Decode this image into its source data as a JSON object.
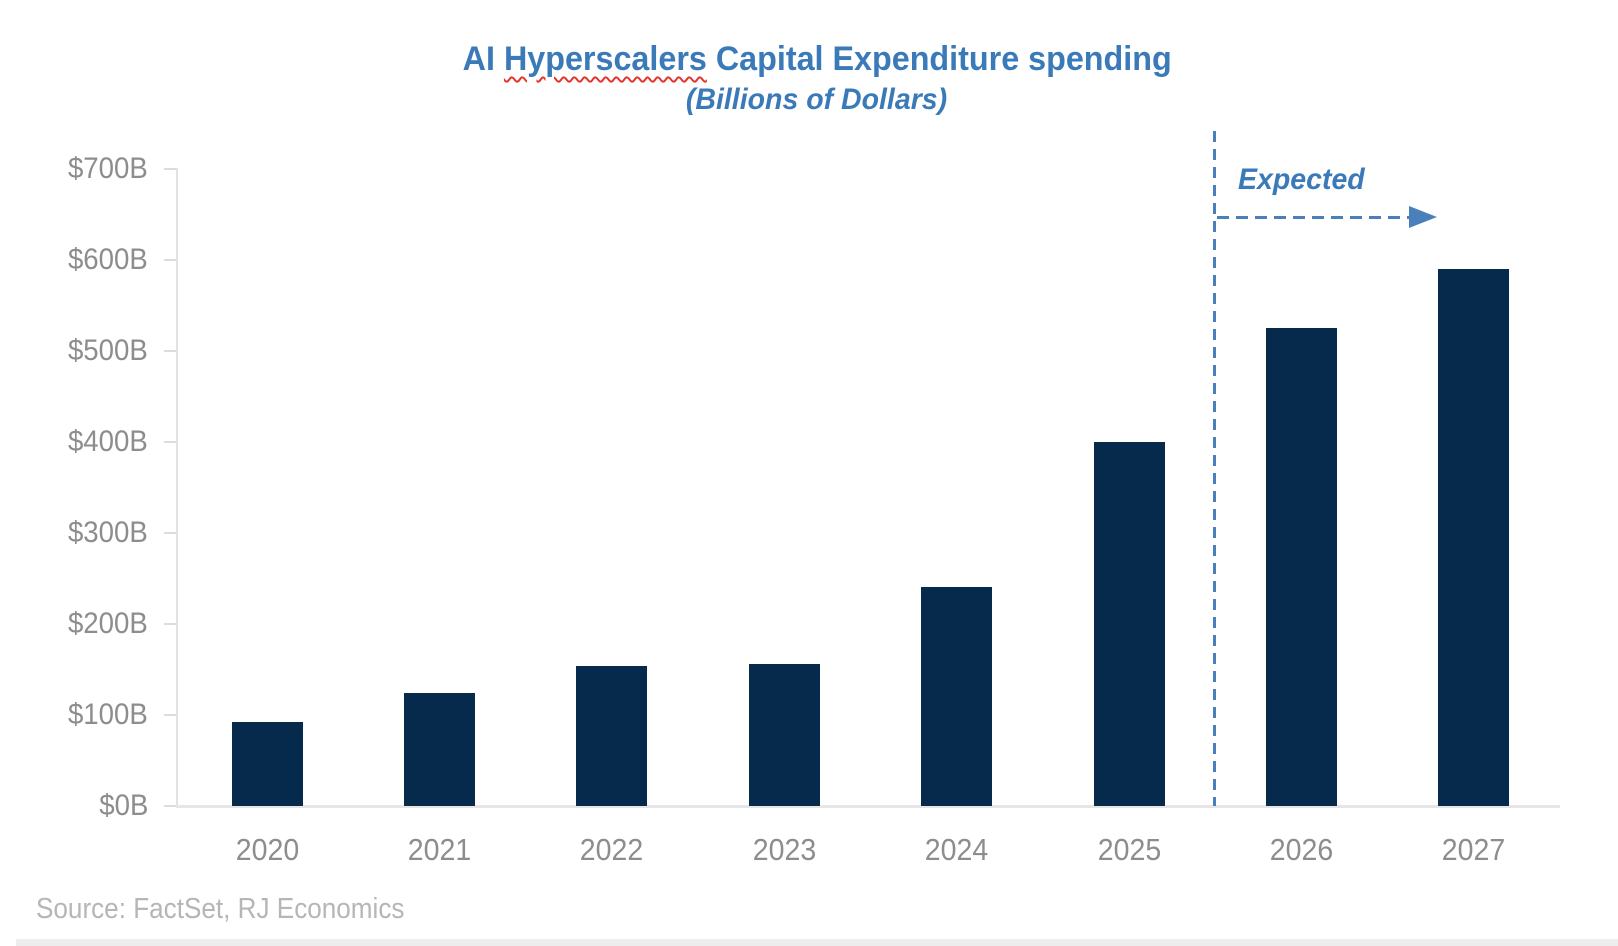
{
  "chart_data": {
    "type": "bar",
    "title": "AI Hyperscalers Capital Expenditure spending",
    "title_parts": {
      "prefix": "AI ",
      "spellcheck_word": "Hyperscalers",
      "suffix": " Capital Expenditure spending"
    },
    "subtitle": "(Billions of Dollars)",
    "categories": [
      "2020",
      "2021",
      "2022",
      "2023",
      "2024",
      "2025",
      "2026",
      "2027"
    ],
    "values": [
      92,
      124,
      154,
      156,
      241,
      400,
      525,
      590
    ],
    "ylim": [
      0,
      700
    ],
    "ytick_step": 100,
    "ytick_labels": [
      "$700B",
      "$600B",
      "$500B",
      "$400B",
      "$300B",
      "$200B",
      "$100B",
      "$0B"
    ],
    "grid": false,
    "legend": "none",
    "annotation": {
      "label": "Expected",
      "divider_between": [
        "2025",
        "2026"
      ],
      "applies_to": [
        "2026",
        "2027"
      ]
    },
    "footer": "Source: FactSet, RJ Economics"
  },
  "colors": {
    "bar": "#052a4b",
    "title_blue": "#3b7ab9",
    "annotation_blue": "#4a80ba",
    "axis_label_gray": "#8d8d8d",
    "source_gray": "#b6b6b6",
    "axis_line_gray": "#e2e2e2",
    "spellcheck_red": "#e3342a"
  }
}
